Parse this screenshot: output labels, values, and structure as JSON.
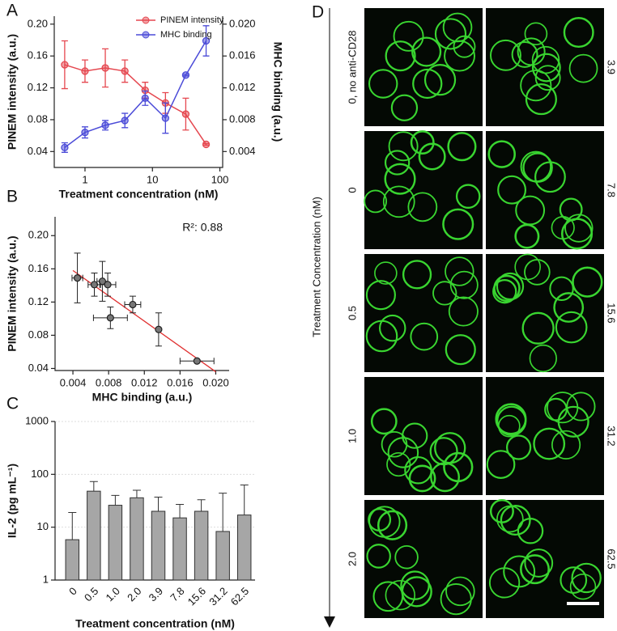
{
  "chart_data": [
    {
      "panel": "A",
      "type": "line",
      "xlabel": "Treatment concentration (nM)",
      "ylabel": "PINEM intensity (a.u.)",
      "y2label": "MHC binding (a.u.)",
      "x": [
        0.5,
        1.0,
        2.0,
        3.9,
        7.8,
        15.6,
        31.2,
        62.5
      ],
      "xscale": "log",
      "xlim": [
        0.35,
        110
      ],
      "xticks": [
        1,
        10,
        100
      ],
      "ylim": [
        0.02,
        0.21
      ],
      "yticks": [
        0.04,
        0.08,
        0.12,
        0.16,
        {
          "value": 0.2,
          "label": "0.20"
        }
      ],
      "y2lim": [
        0.002,
        0.021
      ],
      "y2ticks": [
        0.004,
        0.008,
        0.012,
        0.016,
        {
          "value": 0.02,
          "label": "0.020"
        }
      ],
      "legend": "top-right",
      "series": [
        {
          "name": "PINEM intensity",
          "color": "#e5474f",
          "values": [
            0.149,
            0.141,
            0.145,
            0.141,
            0.117,
            0.101,
            0.087,
            0.049
          ],
          "errors": [
            0.03,
            0.014,
            0.024,
            0.014,
            0.01,
            0.013,
            0.02,
            0.001
          ]
        },
        {
          "name": "MHC binding",
          "color": "#4b4bd8",
          "axis": "y2",
          "values": [
            0.0045,
            0.0064,
            0.0073,
            0.0079,
            0.0107,
            0.0082,
            0.0136,
            0.0179
          ],
          "errors": [
            0.0006,
            0.0007,
            0.0006,
            0.0009,
            0.0009,
            0.0019,
            0.0001,
            0.0019
          ]
        }
      ]
    },
    {
      "panel": "B",
      "type": "scatter",
      "xlabel": "MHC binding (a.u.)",
      "ylabel": "PINEM intensity (a.u.)",
      "annotation": "R²: 0.88",
      "x": [
        0.0045,
        0.0064,
        0.0073,
        0.0079,
        0.0107,
        0.0082,
        0.0136,
        0.0179
      ],
      "x_errors": [
        0.0006,
        0.0007,
        0.0006,
        0.0009,
        0.0009,
        0.0019,
        0.0001,
        0.0019
      ],
      "values": [
        0.149,
        0.141,
        0.145,
        0.141,
        0.117,
        0.101,
        0.087,
        0.049
      ],
      "errors": [
        0.03,
        0.014,
        0.024,
        0.014,
        0.01,
        0.013,
        0.02,
        0.001
      ],
      "color": "#777777",
      "fit_color": "#e03030",
      "fit": {
        "x": [
          0.004,
          0.02
        ],
        "y": [
          0.158,
          0.036
        ]
      },
      "xlim": [
        0.002,
        0.0215
      ],
      "xticks": [
        0.004,
        0.008,
        0.012,
        0.016,
        {
          "value": 0.02,
          "label": "0.020"
        }
      ],
      "ylim": [
        0.02,
        0.21
      ],
      "yticks": [
        0.04,
        0.08,
        0.12,
        0.16,
        {
          "value": 0.2,
          "label": "0.20"
        }
      ]
    },
    {
      "panel": "C",
      "type": "bar",
      "xlabel": "Treatment concentration (nM)",
      "ylabel": "IL-2 (pg mL⁻¹)",
      "categories": [
        "0",
        "0.5",
        "1.0",
        "2.0",
        "3.9",
        "7.8",
        "15.6",
        "31.2",
        "62.5"
      ],
      "values": [
        5.8,
        48,
        26,
        36,
        20,
        15,
        20,
        8.3,
        17
      ],
      "errors": [
        13.2,
        25,
        14,
        14,
        17,
        12,
        13,
        35.7,
        46
      ],
      "color": "#a6a6a6",
      "yscale": "log",
      "ylim": [
        1,
        1000
      ],
      "yticks": [
        1,
        10,
        100,
        1000
      ],
      "grid": true
    }
  ],
  "panel_d": {
    "panel": "D",
    "axis_label": "Treatment Concentration (nM)",
    "rows": [
      {
        "left": "0, no anti-CD28",
        "right": "3.9"
      },
      {
        "left": "0",
        "right": "7.8"
      },
      {
        "left": "0.5",
        "right": "15.6"
      },
      {
        "left": "1.0",
        "right": "31.2"
      },
      {
        "left": "2.0",
        "right": "62.5"
      }
    ]
  }
}
